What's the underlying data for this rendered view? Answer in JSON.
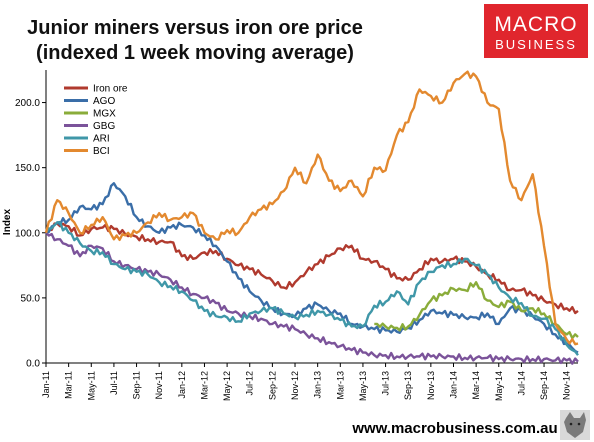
{
  "brand": {
    "logo_line1": "MACRO",
    "logo_line2": "BUSINESS",
    "logo_color": "#e0262d",
    "footer_url": "www.macrobusiness.com.au",
    "mascot_icon": "wolf-icon"
  },
  "chart_data": {
    "type": "line",
    "title": "Junior miners versus iron ore price",
    "subtitle": "(indexed 1 week moving average)",
    "ylabel": "Index",
    "xlabel": "",
    "ylim": [
      0,
      225
    ],
    "yticks": [
      "0.0",
      "50.0",
      "100.0",
      "150.0",
      "200.0"
    ],
    "yticks_values": [
      0,
      50,
      100,
      150,
      200
    ],
    "x_tick_labels": [
      "Jan-11",
      "Mar-11",
      "May-11",
      "Jul-11",
      "Sep-11",
      "Nov-11",
      "Jan-12",
      "Mar-12",
      "May-12",
      "Jul-12",
      "Sep-12",
      "Nov-12",
      "Jan-13",
      "Mar-13",
      "May-13",
      "Jul-13",
      "Sep-13",
      "Nov-13",
      "Jan-14",
      "Mar-14",
      "May-14",
      "Jul-14",
      "Sep-14",
      "Nov-14"
    ],
    "x_units": "months since Jan-11",
    "grid": false,
    "legend_position": "top-left",
    "series": [
      {
        "name": "Iron ore",
        "color": "#b03a2e",
        "x": [
          0,
          1,
          2,
          3,
          4,
          5,
          6,
          7,
          8,
          9,
          10,
          11,
          12,
          13,
          14,
          15,
          16,
          17,
          18,
          19,
          20,
          21,
          22,
          23,
          24,
          25,
          26,
          27,
          28,
          29,
          30,
          31,
          32,
          33,
          34,
          35,
          36,
          37,
          38,
          39,
          40,
          41,
          42,
          43,
          44,
          45,
          46,
          47
        ],
        "values": [
          100,
          107,
          105,
          98,
          103,
          104,
          103,
          99,
          97,
          95,
          93,
          93,
          82,
          80,
          85,
          86,
          80,
          75,
          72,
          68,
          63,
          58,
          62,
          70,
          76,
          82,
          88,
          90,
          80,
          78,
          72,
          65,
          64,
          72,
          80,
          78,
          80,
          78,
          74,
          68,
          64,
          56,
          56,
          52,
          48,
          45,
          42,
          40
        ]
      },
      {
        "name": "AGO",
        "color": "#3a6ea8",
        "x": [
          0,
          1,
          2,
          3,
          4,
          5,
          6,
          7,
          8,
          9,
          10,
          11,
          12,
          13,
          14,
          15,
          16,
          17,
          18,
          19,
          20,
          21,
          22,
          23,
          24,
          25,
          26,
          27,
          28,
          29,
          30,
          31,
          32,
          33,
          34,
          35,
          36,
          37,
          38,
          39,
          40,
          41,
          42,
          43,
          44,
          45,
          46,
          47
        ],
        "values": [
          100,
          108,
          110,
          120,
          118,
          122,
          138,
          128,
          112,
          105,
          100,
          104,
          106,
          104,
          98,
          90,
          78,
          65,
          55,
          48,
          42,
          38,
          36,
          42,
          45,
          40,
          38,
          30,
          28,
          26,
          25,
          24,
          27,
          33,
          40,
          38,
          37,
          35,
          35,
          38,
          30,
          42,
          40,
          36,
          30,
          22,
          15,
          8
        ]
      },
      {
        "name": "MGX",
        "color": "#8aac3a",
        "x": [
          29,
          30,
          31,
          32,
          33,
          34,
          35,
          36,
          37,
          38,
          39,
          40,
          41,
          42,
          43,
          44,
          45,
          46,
          47
        ],
        "values": [
          30,
          28,
          27,
          28,
          37,
          48,
          52,
          57,
          56,
          62,
          48,
          43,
          47,
          40,
          42,
          38,
          30,
          22,
          20
        ]
      },
      {
        "name": "GBG",
        "color": "#7b539a",
        "x": [
          0,
          1,
          2,
          3,
          4,
          5,
          6,
          7,
          8,
          9,
          10,
          11,
          12,
          13,
          14,
          15,
          16,
          17,
          18,
          19,
          20,
          21,
          22,
          23,
          24,
          25,
          26,
          27,
          28,
          29,
          30,
          31,
          32,
          33,
          34,
          35,
          36,
          37,
          38,
          39,
          40,
          41,
          42,
          43,
          44,
          45,
          46,
          47
        ],
        "values": [
          100,
          95,
          90,
          82,
          90,
          88,
          78,
          75,
          72,
          70,
          68,
          64,
          58,
          53,
          50,
          46,
          40,
          38,
          36,
          34,
          30,
          28,
          26,
          22,
          19,
          16,
          13,
          10,
          8,
          6,
          6,
          5,
          5,
          5,
          5,
          5,
          5,
          4,
          4,
          4,
          3,
          3,
          3,
          3,
          3,
          2,
          2,
          1
        ]
      },
      {
        "name": "ARI",
        "color": "#3f97a8",
        "x": [
          0,
          1,
          2,
          3,
          4,
          5,
          6,
          7,
          8,
          9,
          10,
          11,
          12,
          13,
          14,
          15,
          16,
          17,
          18,
          19,
          20,
          21,
          22,
          23,
          24,
          25,
          26,
          27,
          28,
          29,
          30,
          31,
          32,
          33,
          34,
          35,
          36,
          37,
          38,
          39,
          40,
          41,
          42,
          43,
          44,
          45,
          46,
          47
        ],
        "values": [
          100,
          108,
          100,
          92,
          86,
          85,
          76,
          72,
          70,
          68,
          62,
          59,
          55,
          48,
          40,
          36,
          35,
          32,
          38,
          40,
          42,
          38,
          35,
          37,
          40,
          37,
          33,
          28,
          28,
          44,
          47,
          55,
          45,
          62,
          70,
          75,
          76,
          80,
          75,
          68,
          58,
          50,
          46,
          36,
          34,
          26,
          14,
          6
        ]
      },
      {
        "name": "BCI",
        "color": "#e3892f",
        "x": [
          0,
          1,
          2,
          3,
          4,
          5,
          6,
          7,
          8,
          9,
          10,
          11,
          12,
          13,
          14,
          15,
          16,
          17,
          18,
          19,
          20,
          21,
          22,
          23,
          24,
          25,
          26,
          27,
          28,
          29,
          30,
          31,
          32,
          33,
          34,
          35,
          36,
          37,
          38,
          39,
          40,
          41,
          42,
          43,
          44,
          45,
          46,
          47
        ],
        "values": [
          100,
          125,
          115,
          100,
          106,
          112,
          95,
          98,
          100,
          108,
          115,
          110,
          112,
          115,
          100,
          95,
          102,
          100,
          112,
          118,
          122,
          132,
          150,
          138,
          160,
          140,
          132,
          140,
          128,
          150,
          148,
          175,
          185,
          210,
          205,
          200,
          215,
          222,
          220,
          200,
          195,
          140,
          125,
          145,
          90,
          30,
          18,
          15
        ]
      }
    ]
  }
}
